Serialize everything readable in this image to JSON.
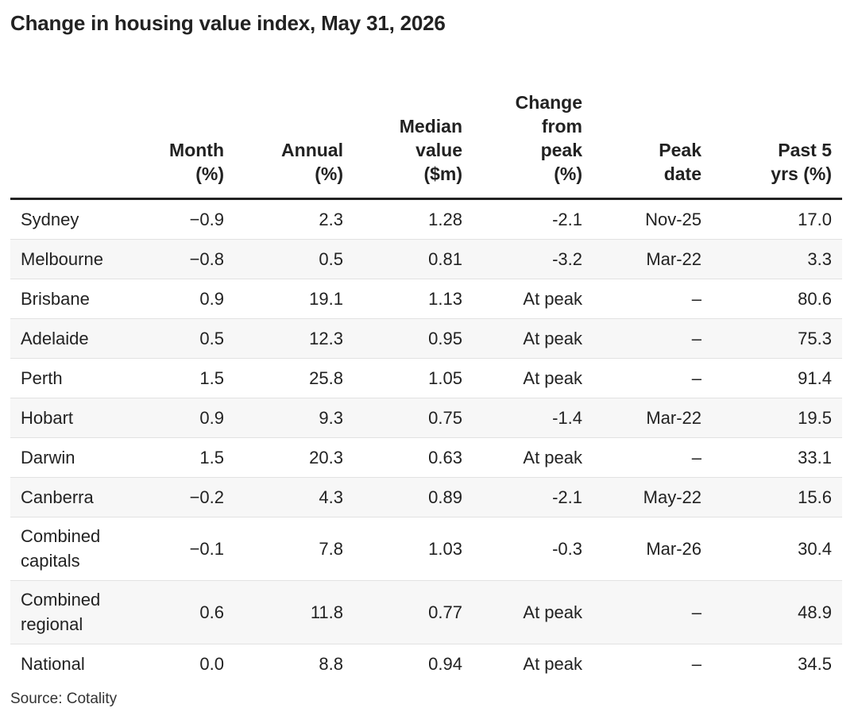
{
  "title": "Change in housing value index, May 31, 2026",
  "source": "Source: Cotality",
  "chart_data": {
    "type": "table",
    "title": "Change in housing value index, May 31, 2026",
    "columns": [
      {
        "lines": [
          ""
        ]
      },
      {
        "lines": [
          "Month",
          "(%)"
        ]
      },
      {
        "lines": [
          "Annual",
          "(%)"
        ]
      },
      {
        "lines": [
          "Median",
          "value",
          "($m)"
        ]
      },
      {
        "lines": [
          "Change",
          "from",
          "peak",
          "(%)"
        ]
      },
      {
        "lines": [
          "Peak",
          "date"
        ]
      },
      {
        "lines": [
          "Past 5",
          "yrs (%)"
        ]
      }
    ],
    "rows": [
      {
        "name": [
          "Sydney"
        ],
        "month": "−0.9",
        "annual": "2.3",
        "median": "1.28",
        "from_peak": "-2.1",
        "peak_date": "Nov-25",
        "past5": "17.0"
      },
      {
        "name": [
          "Melbourne"
        ],
        "month": "−0.8",
        "annual": "0.5",
        "median": "0.81",
        "from_peak": "-3.2",
        "peak_date": "Mar-22",
        "past5": "3.3"
      },
      {
        "name": [
          "Brisbane"
        ],
        "month": "0.9",
        "annual": "19.1",
        "median": "1.13",
        "from_peak": "At peak",
        "peak_date": "–",
        "past5": "80.6"
      },
      {
        "name": [
          "Adelaide"
        ],
        "month": "0.5",
        "annual": "12.3",
        "median": "0.95",
        "from_peak": "At peak",
        "peak_date": "–",
        "past5": "75.3"
      },
      {
        "name": [
          "Perth"
        ],
        "month": "1.5",
        "annual": "25.8",
        "median": "1.05",
        "from_peak": "At peak",
        "peak_date": "–",
        "past5": "91.4"
      },
      {
        "name": [
          "Hobart"
        ],
        "month": "0.9",
        "annual": "9.3",
        "median": "0.75",
        "from_peak": "-1.4",
        "peak_date": "Mar-22",
        "past5": "19.5"
      },
      {
        "name": [
          "Darwin"
        ],
        "month": "1.5",
        "annual": "20.3",
        "median": "0.63",
        "from_peak": "At peak",
        "peak_date": "–",
        "past5": "33.1"
      },
      {
        "name": [
          "Canberra"
        ],
        "month": "−0.2",
        "annual": "4.3",
        "median": "0.89",
        "from_peak": "-2.1",
        "peak_date": "May-22",
        "past5": "15.6"
      },
      {
        "name": [
          "Combined",
          "capitals"
        ],
        "month": "−0.1",
        "annual": "7.8",
        "median": "1.03",
        "from_peak": "-0.3",
        "peak_date": "Mar-26",
        "past5": "30.4"
      },
      {
        "name": [
          "Combined",
          "regional"
        ],
        "month": "0.6",
        "annual": "11.8",
        "median": "0.77",
        "from_peak": "At peak",
        "peak_date": "–",
        "past5": "48.9"
      },
      {
        "name": [
          "National"
        ],
        "month": "0.0",
        "annual": "8.8",
        "median": "0.94",
        "from_peak": "At peak",
        "peak_date": "–",
        "past5": "34.5"
      }
    ]
  }
}
